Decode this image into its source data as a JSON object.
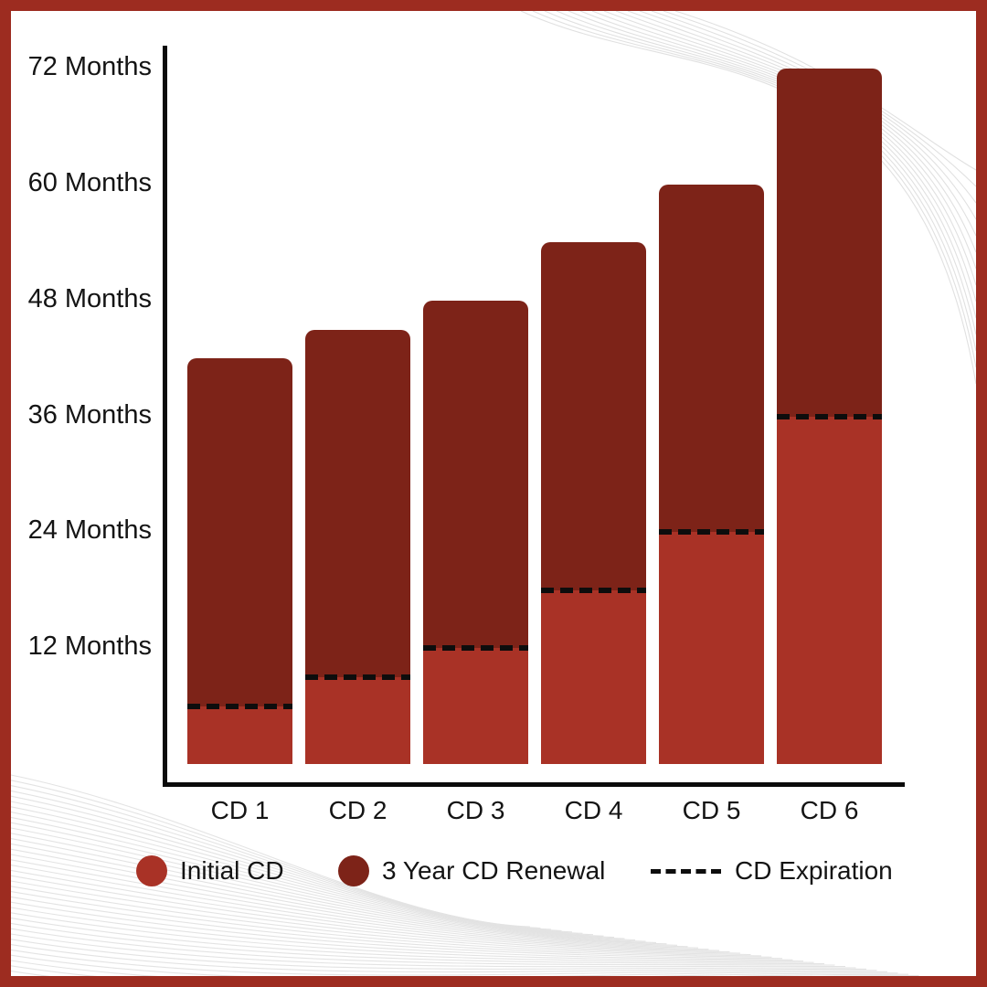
{
  "page": {
    "background_color": "#ffffff",
    "frame_color": "#9d2c20",
    "axis_color": "#0b0b0b",
    "text_color": "#141414"
  },
  "chart_data": {
    "type": "bar",
    "stacked": true,
    "categories": [
      "CD 1",
      "CD 2",
      "CD 3",
      "CD 4",
      "CD 5",
      "CD 6"
    ],
    "series": [
      {
        "name": "Initial CD",
        "color": "#a93226",
        "values": [
          6,
          9,
          12,
          18,
          24,
          36
        ]
      },
      {
        "name": "3 Year CD Renewal",
        "color": "#7d2318",
        "values": [
          36,
          36,
          36,
          36,
          36,
          36
        ]
      }
    ],
    "totals": [
      42,
      45,
      48,
      54,
      60,
      72
    ],
    "markers": {
      "name": "CD Expiration",
      "style": "dashed",
      "color": "#0d0d0d",
      "values": [
        6,
        9,
        12,
        18,
        24,
        36
      ]
    },
    "unit": "Months",
    "y_ticks": [
      {
        "value": 72,
        "label": "72 Months"
      },
      {
        "value": 60,
        "label": "60 Months"
      },
      {
        "value": 48,
        "label": "48 Months"
      },
      {
        "value": 36,
        "label": "36 Months"
      },
      {
        "value": 24,
        "label": "24 Months"
      },
      {
        "value": 12,
        "label": "12 Months"
      }
    ],
    "ylim": [
      0,
      72
    ],
    "grid": false,
    "legend_position": "bottom"
  },
  "legend": {
    "items": [
      {
        "label": "Initial CD",
        "swatch": "circle",
        "color": "#a93226"
      },
      {
        "label": "3 Year CD Renewal",
        "swatch": "circle",
        "color": "#7d2318"
      },
      {
        "label": "CD Expiration",
        "swatch": "dashed-line",
        "color": "#0d0d0d"
      }
    ]
  }
}
